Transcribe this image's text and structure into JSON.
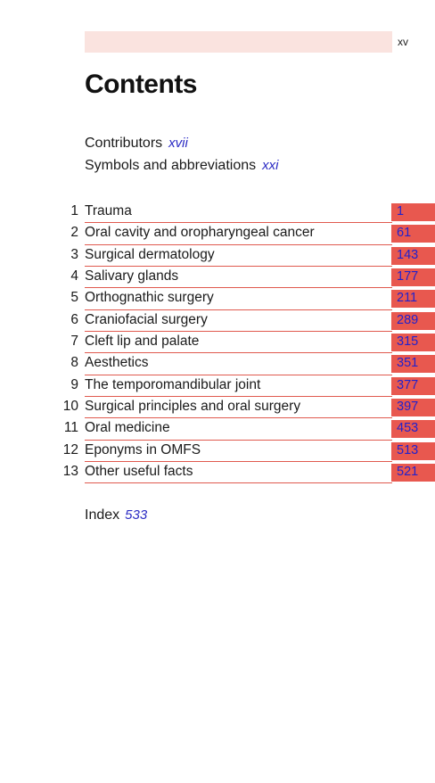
{
  "header": {
    "page_number": "xv"
  },
  "title": "Contents",
  "front_matter": [
    {
      "label": "Contributors",
      "page": "xvii"
    },
    {
      "label": "Symbols and abbreviations",
      "page": "xxi"
    }
  ],
  "chapters": [
    {
      "number": "1",
      "title": "Trauma",
      "page": "1"
    },
    {
      "number": "2",
      "title": "Oral cavity and oropharyngeal cancer",
      "page": "61"
    },
    {
      "number": "3",
      "title": "Surgical dermatology",
      "page": "143"
    },
    {
      "number": "4",
      "title": "Salivary glands",
      "page": "177"
    },
    {
      "number": "5",
      "title": "Orthognathic surgery",
      "page": "211"
    },
    {
      "number": "6",
      "title": "Craniofacial surgery",
      "page": "289"
    },
    {
      "number": "7",
      "title": "Cleft lip and palate",
      "page": "315"
    },
    {
      "number": "8",
      "title": "Aesthetics",
      "page": "351"
    },
    {
      "number": "9",
      "title": "The temporomandibular joint",
      "page": "377"
    },
    {
      "number": "10",
      "title": "Surgical principles and oral surgery",
      "page": "397"
    },
    {
      "number": "11",
      "title": "Oral medicine",
      "page": "453"
    },
    {
      "number": "12",
      "title": "Eponyms in OMFS",
      "page": "513"
    },
    {
      "number": "13",
      "title": "Other useful facts",
      "page": "521"
    }
  ],
  "index": {
    "label": "Index",
    "page": "533"
  },
  "colors": {
    "header_band": "#fae3df",
    "page_tab": "#e8584f",
    "rule": "#e05a4f",
    "link": "#2222cc"
  }
}
